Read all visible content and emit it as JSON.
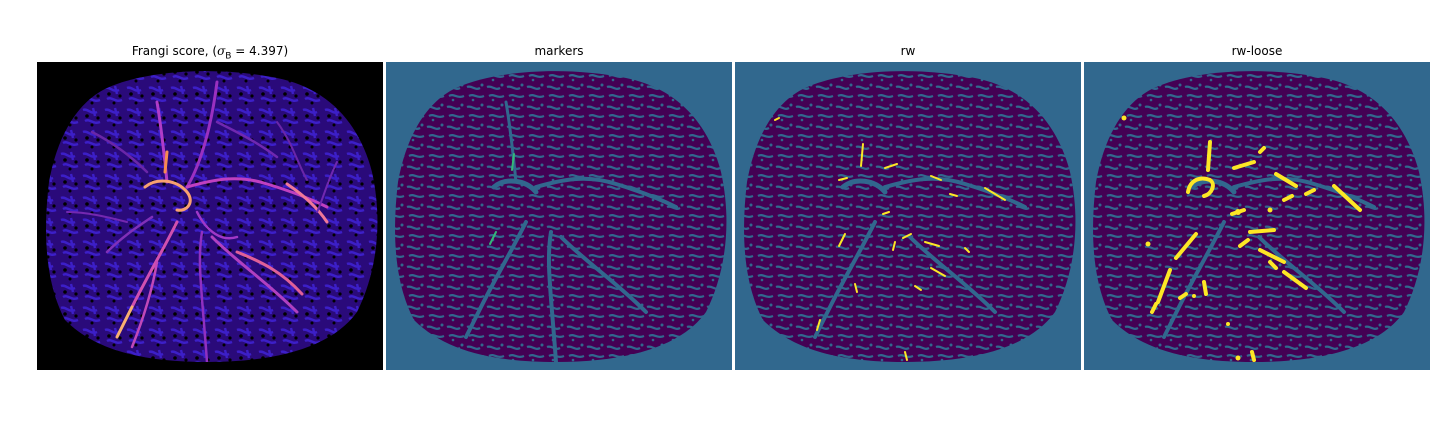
{
  "panels": [
    {
      "id": "frangi",
      "title_prefix": "Frangi score, (",
      "title_symbol": "σ",
      "title_subscript": "B",
      "title_suffix": " = 4.397)",
      "background_color": "#000000",
      "colormap": "magma"
    },
    {
      "id": "markers",
      "title": "markers",
      "background_color": "#31688e",
      "foreground_color": "#440154",
      "accent_color": "#35b779",
      "colormap": "viridis"
    },
    {
      "id": "rw",
      "title": "rw",
      "background_color": "#31688e",
      "foreground_color": "#440154",
      "accent_color": "#fde725",
      "colormap": "viridis"
    },
    {
      "id": "rw-loose",
      "title": "rw-loose",
      "background_color": "#31688e",
      "foreground_color": "#440154",
      "accent_color": "#fde725",
      "colormap": "viridis"
    }
  ]
}
